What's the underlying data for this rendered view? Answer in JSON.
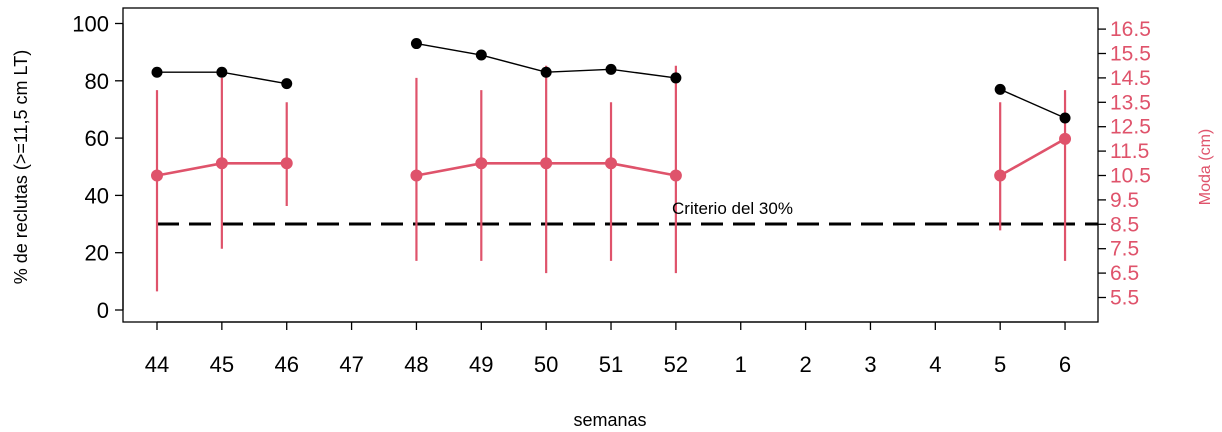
{
  "chart_data": {
    "type": "line",
    "categories": [
      "44",
      "45",
      "46",
      "47",
      "48",
      "49",
      "50",
      "51",
      "52",
      "1",
      "2",
      "3",
      "4",
      "5",
      "6"
    ],
    "xlabel": "semanas",
    "ylabel": "% de reclutas (>=11,5 cm LT)",
    "ylabel_right": "Moda (cm)",
    "ylim": [
      0,
      100
    ],
    "yticks": [
      "0",
      "20",
      "40",
      "60",
      "80",
      "100"
    ],
    "ylim_right": [
      4.5,
      17.25
    ],
    "yticks_right": [
      "5.5",
      "6.5",
      "7.5",
      "8.5",
      "9.5",
      "10.5",
      "11.5",
      "12.5",
      "13.5",
      "14.5",
      "15.5",
      "16.5"
    ],
    "series": [
      {
        "axis": "left",
        "color": "#000000",
        "values": [
          83,
          83,
          79,
          null,
          93,
          89,
          83,
          84,
          81,
          null,
          null,
          null,
          null,
          77,
          67
        ]
      },
      {
        "axis": "right",
        "color": "#DF536B",
        "values": [
          10.5,
          11,
          11,
          null,
          10.5,
          11,
          11,
          11,
          10.5,
          null,
          null,
          null,
          null,
          10.5,
          12
        ],
        "err_low": [
          5.75,
          7.5,
          9.25,
          null,
          7,
          7,
          6.5,
          7,
          6.5,
          null,
          null,
          null,
          null,
          8.25,
          7
        ],
        "err_high": [
          14,
          14.5,
          13.5,
          null,
          14.5,
          14,
          15,
          13.5,
          15,
          null,
          null,
          null,
          null,
          13.5,
          14
        ]
      }
    ],
    "reference_line": {
      "value": 30,
      "axis": "left",
      "style": "dashed",
      "label": "Criterio del 30%"
    }
  }
}
